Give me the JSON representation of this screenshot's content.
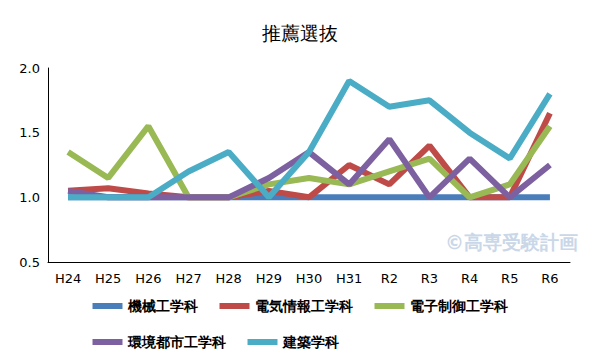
{
  "chart_data": {
    "type": "line",
    "title": "推薦選抜",
    "categories": [
      "H24",
      "H25",
      "H26",
      "H27",
      "H28",
      "H29",
      "H30",
      "H31",
      "R2",
      "R3",
      "R4",
      "R5",
      "R6"
    ],
    "series": [
      {
        "name": "機械工学科",
        "color": "#4a7ebb",
        "values": [
          1.0,
          1.0,
          1.0,
          1.0,
          1.0,
          1.0,
          1.0,
          1.0,
          1.0,
          1.0,
          1.0,
          1.0,
          1.0
        ]
      },
      {
        "name": "電気情報工学科",
        "color": "#be4b48",
        "values": [
          1.05,
          1.07,
          1.03,
          1.0,
          1.0,
          1.05,
          1.0,
          1.25,
          1.1,
          1.4,
          1.0,
          1.0,
          1.65
        ]
      },
      {
        "name": "電子制御工学科",
        "color": "#98b954",
        "values": [
          1.35,
          1.15,
          1.55,
          1.0,
          1.0,
          1.1,
          1.15,
          1.1,
          1.2,
          1.3,
          1.0,
          1.1,
          1.55
        ]
      },
      {
        "name": "環境都市工学科",
        "color": "#7d60a0",
        "values": [
          1.05,
          1.0,
          1.0,
          1.0,
          1.0,
          1.15,
          1.35,
          1.1,
          1.45,
          1.0,
          1.3,
          1.0,
          1.25
        ]
      },
      {
        "name": "建築学科",
        "color": "#4bacc6",
        "values": [
          1.0,
          1.0,
          1.0,
          1.2,
          1.35,
          1.0,
          1.35,
          1.9,
          1.7,
          1.75,
          1.5,
          1.3,
          1.8
        ]
      }
    ],
    "ylim": [
      0.5,
      2.0
    ],
    "yticks": [
      0.5,
      {
        "value": 1.0,
        "label": "1.0"
      },
      1.5,
      {
        "value": 2.0,
        "label": "2.0"
      }
    ],
    "grid": false,
    "legend": "bottom",
    "annotations": [
      "©高専受験計画"
    ]
  }
}
